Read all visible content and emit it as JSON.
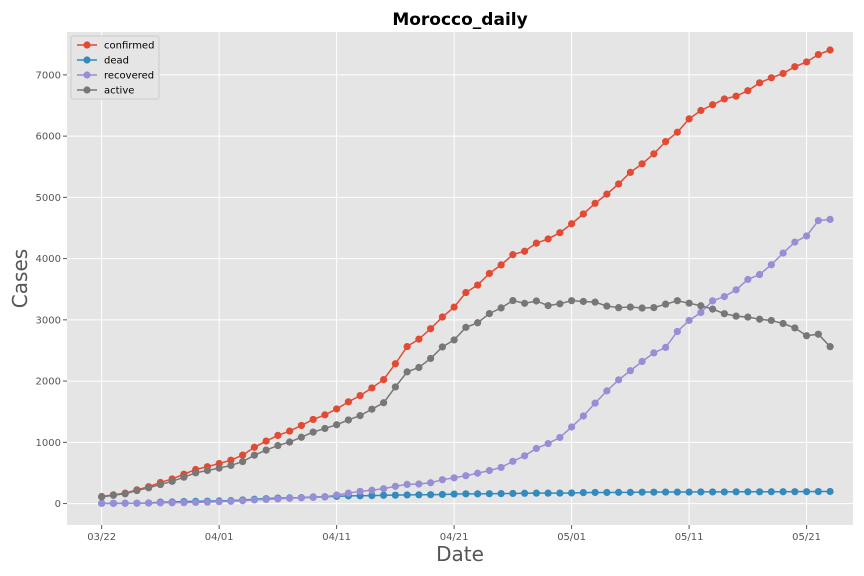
{
  "chart_data": {
    "type": "line",
    "title": "Morocco_daily",
    "xlabel": "Date",
    "ylabel": "Cases",
    "x_start": "2020-03-22",
    "x_ticks": [
      "03/22",
      "04/01",
      "04/11",
      "04/21",
      "05/01",
      "05/11",
      "05/21"
    ],
    "y_ticks": [
      0,
      1000,
      2000,
      3000,
      4000,
      5000,
      6000,
      7000
    ],
    "ylim": [
      -350,
      7700
    ],
    "grid": true,
    "legend_position": "top-left",
    "series": [
      {
        "name": "confirmed",
        "color": "#E24A33",
        "values": [
          115,
          143,
          170,
          225,
          275,
          345,
          402,
          479,
          556,
          602,
          654,
          708,
          791,
          919,
          1021,
          1113,
          1184,
          1275,
          1374,
          1448,
          1545,
          1661,
          1763,
          1888,
          2024,
          2283,
          2564,
          2685,
          2855,
          3046,
          3209,
          3446,
          3568,
          3758,
          3897,
          4065,
          4120,
          4252,
          4321,
          4423,
          4569,
          4729,
          4903,
          5053,
          5219,
          5408,
          5548,
          5711,
          5910,
          6063,
          6281,
          6418,
          6512,
          6607,
          6652,
          6741,
          6870,
          6952,
          7023,
          7133,
          7211,
          7332,
          7406
        ]
      },
      {
        "name": "dead",
        "color": "#348ABD",
        "values": [
          4,
          4,
          5,
          6,
          10,
          23,
          26,
          33,
          36,
          39,
          44,
          48,
          59,
          70,
          80,
          90,
          93,
          97,
          107,
          111,
          118,
          126,
          127,
          130,
          135,
          137,
          141,
          143,
          145,
          149,
          155,
          159,
          159,
          161,
          162,
          165,
          168,
          170,
          170,
          171,
          173,
          179,
          181,
          181,
          183,
          183,
          186,
          186,
          188,
          188,
          188,
          190,
          190,
          190,
          192,
          192,
          192,
          193,
          193,
          194,
          194,
          196,
          197
        ]
      },
      {
        "name": "recovered",
        "color": "#988ED5",
        "values": [
          3,
          4,
          5,
          6,
          8,
          11,
          13,
          15,
          18,
          23,
          31,
          37,
          46,
          59,
          68,
          76,
          86,
          95,
          100,
          110,
          140,
          170,
          200,
          217,
          243,
          282,
          313,
          320,
          340,
          390,
          420,
          455,
          495,
          540,
          590,
          690,
          780,
          900,
          980,
          1080,
          1250,
          1430,
          1640,
          1840,
          2020,
          2170,
          2320,
          2460,
          2550,
          2810,
          2990,
          3120,
          3310,
          3380,
          3490,
          3660,
          3740,
          3900,
          4090,
          4270,
          4370,
          4620,
          4640
        ]
      },
      {
        "name": "active",
        "color": "#777777",
        "values": [
          108,
          135,
          160,
          213,
          257,
          311,
          363,
          431,
          502,
          540,
          579,
          623,
          686,
          790,
          873,
          947,
          1005,
          1083,
          1167,
          1227,
          1287,
          1365,
          1436,
          1541,
          1646,
          1904,
          2150,
          2222,
          2370,
          2557,
          2672,
          2877,
          2952,
          3102,
          3195,
          3315,
          3270,
          3308,
          3232,
          3262,
          3313,
          3300,
          3289,
          3225,
          3199,
          3209,
          3193,
          3200,
          3256,
          3312,
          3272,
          3230,
          3175,
          3100,
          3060,
          3045,
          3010,
          2990,
          2940,
          2868,
          2740,
          2765,
          2562
        ]
      }
    ]
  }
}
